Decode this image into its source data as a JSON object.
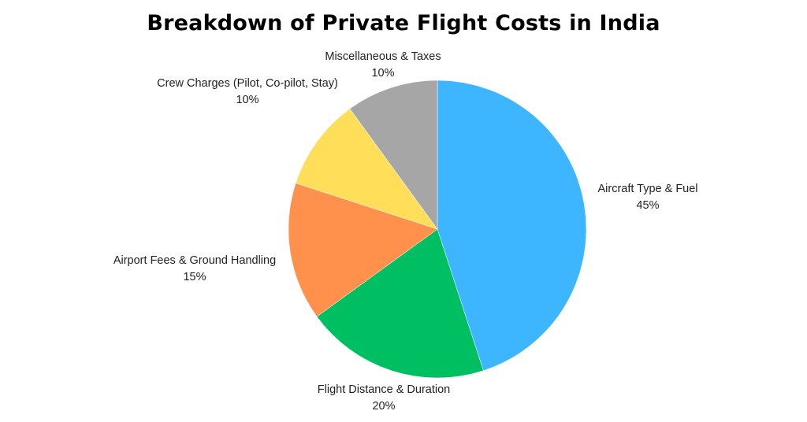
{
  "chart_data": {
    "type": "pie",
    "title": "Breakdown of Private Flight Costs in India",
    "start_angle_deg": 0,
    "direction": "clockwise",
    "slices": [
      {
        "label": "Aircraft Type & Fuel",
        "value": 45,
        "value_label": "45%",
        "color": "#3db5ff",
        "label_position": "right"
      },
      {
        "label": "Flight Distance & Duration",
        "value": 20,
        "value_label": "20%",
        "color": "#00bf63",
        "label_position": "bottom"
      },
      {
        "label": "Airport Fees & Ground Handling",
        "value": 15,
        "value_label": "15%",
        "color": "#ff914d",
        "label_position": "left"
      },
      {
        "label": "Crew Charges (Pilot, Co-pilot, Stay)",
        "value": 10,
        "value_label": "10%",
        "color": "#ffde59",
        "label_position": "top-left"
      },
      {
        "label": "Miscellaneous & Taxes",
        "value": 10,
        "value_label": "10%",
        "color": "#a6a6a6",
        "label_position": "top"
      }
    ]
  }
}
